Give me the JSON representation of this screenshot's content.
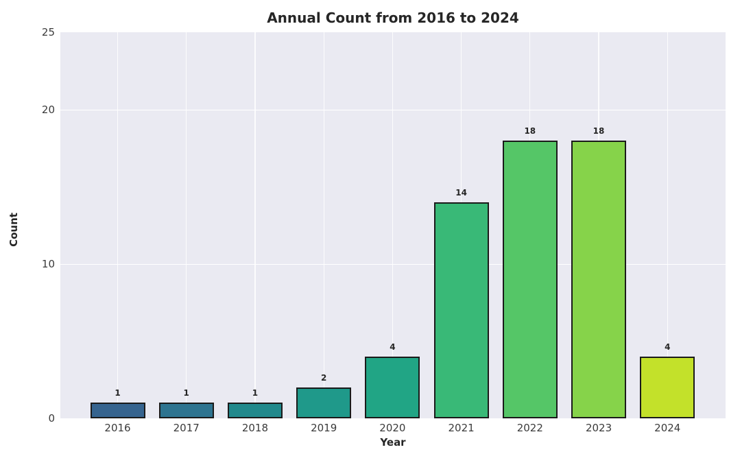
{
  "chart_data": {
    "type": "bar",
    "title": "Annual Count from 2016 to 2024",
    "xlabel": "Year",
    "ylabel": "Count",
    "categories": [
      "2016",
      "2017",
      "2018",
      "2019",
      "2020",
      "2021",
      "2022",
      "2023",
      "2024"
    ],
    "values": [
      1,
      1,
      1,
      2,
      4,
      14,
      18,
      18,
      4
    ],
    "value_labels": [
      "1",
      "1",
      "1",
      "2",
      "4",
      "14",
      "18",
      "18",
      "4"
    ],
    "bar_colors": [
      "#36648F",
      "#2E7490",
      "#21898C",
      "#1F998A",
      "#21A585",
      "#39B977",
      "#55C667",
      "#86D34A",
      "#C3E12A"
    ],
    "bar_edge_color": "#1a1a1a",
    "yticks": [
      0,
      10,
      20,
      25
    ],
    "ylim": [
      0,
      25
    ],
    "grid": true,
    "legend": null,
    "plot_bg_color": "#EAEAF2",
    "grid_color": "#FFFFFF",
    "text_color": "#262626",
    "figure_bg_color": "#FFFFFF"
  }
}
